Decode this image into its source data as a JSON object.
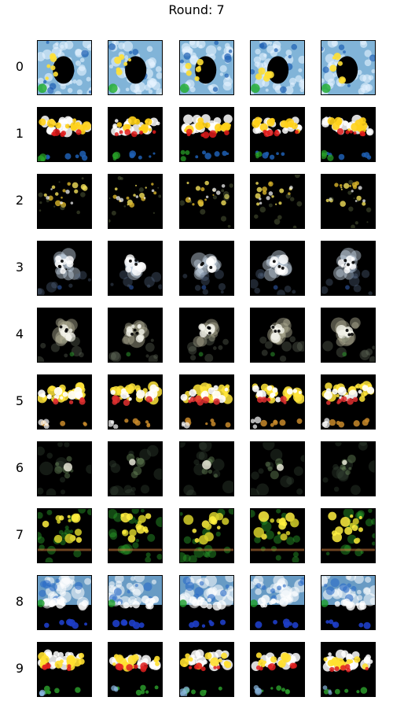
{
  "title": "Round: 7",
  "rows": [
    {
      "label": "0",
      "palette": [
        "#8fc8f0",
        "#e6f3ff",
        "#1e5fb3",
        "#ffe033",
        "#1fae2a"
      ],
      "style": "ring"
    },
    {
      "label": "1",
      "palette": [
        "#ffffff",
        "#ffd21a",
        "#e01b1b",
        "#1e5fb3",
        "#2aa52a"
      ],
      "style": "bands"
    },
    {
      "label": "2",
      "palette": [
        "#f3e05a",
        "#d8b42a",
        "#ffffff",
        "#7a8a55"
      ],
      "style": "sparse"
    },
    {
      "label": "3",
      "palette": [
        "#ffffff",
        "#c8d6e6",
        "#5a6e8a",
        "#2e58a6"
      ],
      "style": "cloud"
    },
    {
      "label": "4",
      "palette": [
        "#f2f2ea",
        "#b6b39a",
        "#6a7460",
        "#2a8a2a"
      ],
      "style": "cloud"
    },
    {
      "label": "5",
      "palette": [
        "#ffe53a",
        "#ffffff",
        "#e03030",
        "#c88a2a"
      ],
      "style": "bands"
    },
    {
      "label": "6",
      "palette": [
        "#e6e6d6",
        "#6a8a5a",
        "#3a4a3a"
      ],
      "style": "faint"
    },
    {
      "label": "7",
      "palette": [
        "#fff040",
        "#d6d02a",
        "#2aa02a",
        "#c87a3a"
      ],
      "style": "leafy"
    },
    {
      "label": "8",
      "palette": [
        "#7ab6e6",
        "#ffffff",
        "#2a6ac8",
        "#1e9e2a",
        "#1e3ec8"
      ],
      "style": "sky"
    },
    {
      "label": "9",
      "palette": [
        "#ffffff",
        "#ffe030",
        "#e02020",
        "#2a9a2a",
        "#8ab8e0"
      ],
      "style": "bands"
    }
  ]
}
